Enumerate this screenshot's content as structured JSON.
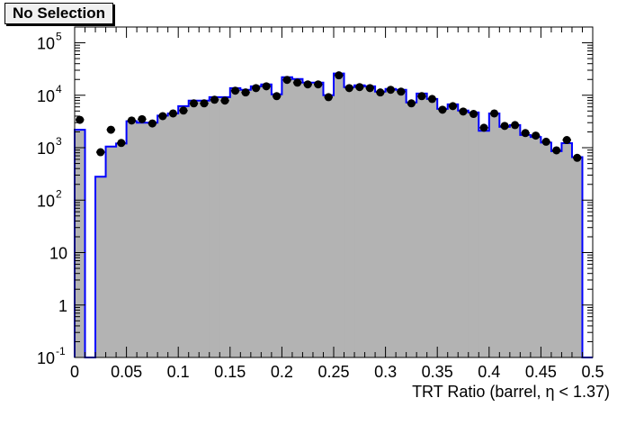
{
  "chart_data": {
    "type": "bar",
    "title": "No Selection",
    "xlabel": "TRT Ratio (barrel,  η < 1.37)",
    "ylabel": "",
    "xlim": [
      0,
      0.5
    ],
    "ylim": [
      0.1,
      200000
    ],
    "y_scale": "log",
    "grid": false,
    "bin_width": 0.01,
    "x_ticks": [
      "0",
      "0.05",
      "0.1",
      "0.15",
      "0.2",
      "0.25",
      "0.3",
      "0.35",
      "0.4",
      "0.45",
      "0.5"
    ],
    "y_ticks": [
      {
        "value": 0.1,
        "label": "10",
        "exp": "-1"
      },
      {
        "value": 1,
        "label": "1",
        "exp": ""
      },
      {
        "value": 10,
        "label": "10",
        "exp": ""
      },
      {
        "value": 100,
        "label": "10",
        "exp": "2"
      },
      {
        "value": 1000,
        "label": "10",
        "exp": "3"
      },
      {
        "value": 10000,
        "label": "10",
        "exp": "4"
      },
      {
        "value": 100000,
        "label": "10",
        "exp": "5"
      }
    ],
    "series": [
      {
        "kind": "histogram",
        "fill": "#b3b3b3",
        "line": "#0000ff",
        "values": [
          2200,
          0,
          280,
          1050,
          1200,
          3200,
          3000,
          3000,
          4100,
          4500,
          6200,
          7900,
          7900,
          9200,
          9200,
          13700,
          12700,
          14800,
          16100,
          10400,
          22100,
          20400,
          17400,
          17400,
          10000,
          26000,
          14300,
          15500,
          14800,
          11700,
          13200,
          12700,
          7300,
          10800,
          8500,
          5500,
          6700,
          5100,
          4700,
          2100,
          4500,
          2500,
          2700,
          1750,
          1600,
          1250,
          860,
          1220,
          660,
          0
        ]
      },
      {
        "kind": "points",
        "color": "#000000",
        "values": [
          3400,
          0,
          820,
          2200,
          1230,
          3300,
          3500,
          2900,
          4000,
          4500,
          5100,
          7000,
          7000,
          8200,
          7900,
          12200,
          11300,
          13700,
          14800,
          9600,
          19600,
          17400,
          16100,
          16100,
          9200,
          24000,
          13700,
          14300,
          13700,
          11300,
          12700,
          11700,
          7000,
          9600,
          8500,
          5300,
          6200,
          4900,
          4400,
          2400,
          4500,
          2600,
          2700,
          1900,
          1700,
          1300,
          890,
          1400,
          640,
          0
        ]
      }
    ]
  }
}
